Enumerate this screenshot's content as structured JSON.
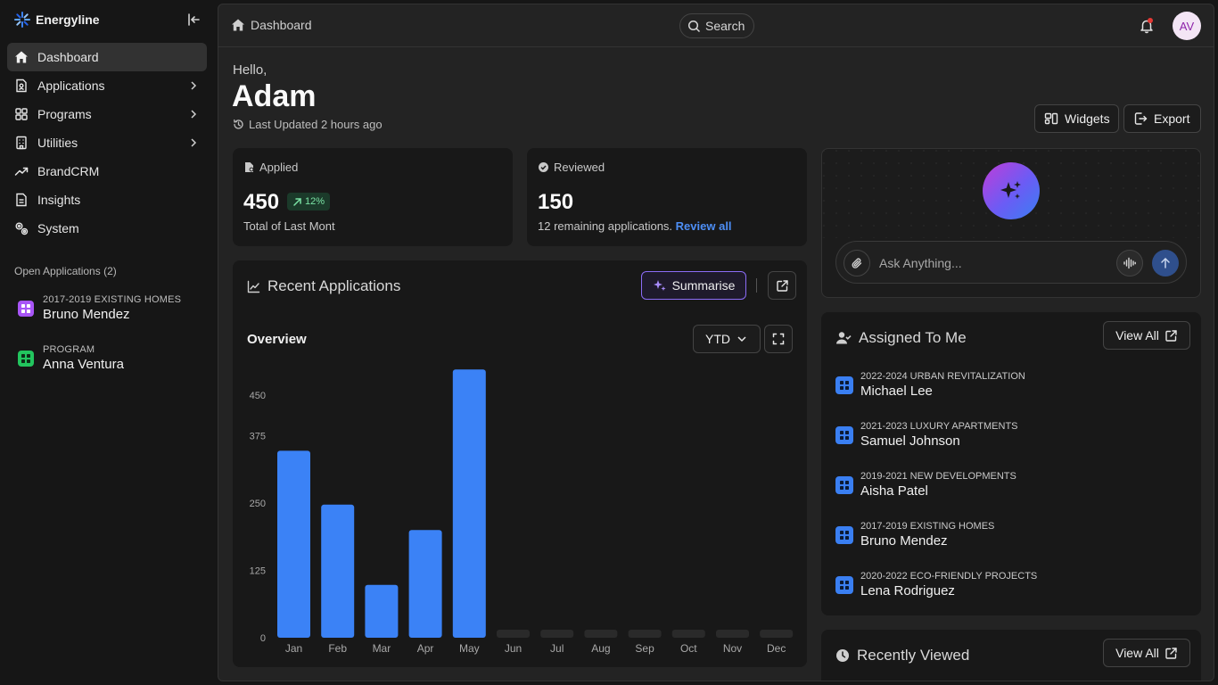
{
  "app": {
    "name": "Energyline"
  },
  "sidebar": {
    "items": [
      {
        "label": "Dashboard",
        "icon": "home-icon",
        "active": true,
        "has_children": false
      },
      {
        "label": "Applications",
        "icon": "document-icon",
        "active": false,
        "has_children": true
      },
      {
        "label": "Programs",
        "icon": "grid-icon",
        "active": false,
        "has_children": true
      },
      {
        "label": "Utilities",
        "icon": "building-icon",
        "active": false,
        "has_children": true
      },
      {
        "label": "BrandCRM",
        "icon": "trend-icon",
        "active": false,
        "has_children": false
      },
      {
        "label": "Insights",
        "icon": "report-icon",
        "active": false,
        "has_children": false
      },
      {
        "label": "System",
        "icon": "cog-icon",
        "active": false,
        "has_children": false
      }
    ],
    "open_apps": {
      "title": "Open Applications (2)",
      "items": [
        {
          "caption": "2017-2019 EXISTING HOMES",
          "name": "Bruno Mendez",
          "color": "#a855f7"
        },
        {
          "caption": "PROGRAM",
          "name": "Anna Ventura",
          "color": "#22c55e"
        }
      ]
    }
  },
  "header": {
    "breadcrumb": "Dashboard",
    "search_label": "Search",
    "avatar_initials": "AV"
  },
  "greeting": {
    "hello": "Hello,",
    "name": "Adam",
    "updated": "Last Updated 2 hours ago"
  },
  "actions": {
    "widgets": "Widgets",
    "export": "Export"
  },
  "stats": {
    "applied": {
      "title": "Applied",
      "value": "450",
      "trend": "12%",
      "subtitle": "Total of Last Mont"
    },
    "reviewed": {
      "title": "Reviewed",
      "value": "150",
      "subtitle": "12 remaining applications.",
      "link": "Review all"
    }
  },
  "recent": {
    "title": "Recent Applications",
    "summarise": "Summarise",
    "overview": "Overview",
    "period": "YTD"
  },
  "chart_data": {
    "type": "bar",
    "categories": [
      "Jan",
      "Feb",
      "Mar",
      "Apr",
      "May",
      "Jun",
      "Jul",
      "Aug",
      "Sep",
      "Oct",
      "Nov",
      "Dec"
    ],
    "values": [
      347,
      247,
      98,
      200,
      498,
      0,
      0,
      0,
      0,
      0,
      0,
      0
    ],
    "y_ticks": [
      0,
      125,
      250,
      375,
      450
    ],
    "ylim": [
      0,
      500
    ],
    "bar_color": "#3b82f6",
    "empty_color": "#2a2a2a"
  },
  "assistant": {
    "placeholder": "Ask Anything..."
  },
  "assigned": {
    "title": "Assigned To Me",
    "view_all": "View All",
    "items": [
      {
        "caption": "2022-2024 URBAN REVITALIZATION",
        "name": "Michael Lee"
      },
      {
        "caption": "2021-2023 LUXURY APARTMENTS",
        "name": "Samuel Johnson"
      },
      {
        "caption": "2019-2021 NEW DEVELOPMENTS",
        "name": "Aisha Patel"
      },
      {
        "caption": "2017-2019 EXISTING HOMES",
        "name": "Bruno Mendez"
      },
      {
        "caption": "2020-2022 ECO-FRIENDLY PROJECTS",
        "name": "Lena Rodriguez"
      }
    ]
  },
  "recently_viewed": {
    "title": "Recently Viewed",
    "view_all": "View All"
  }
}
